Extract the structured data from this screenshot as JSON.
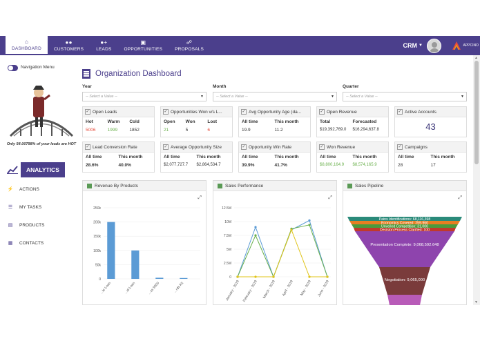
{
  "nav": {
    "items": [
      {
        "label": "DASHBOARD",
        "icon": "home-icon"
      },
      {
        "label": "CUSTOMERS",
        "icon": "users-icon"
      },
      {
        "label": "LEADS",
        "icon": "user-plus-icon"
      },
      {
        "label": "OPPORTUNITIES",
        "icon": "briefcase-icon"
      },
      {
        "label": "PROPOSALS",
        "icon": "handshake-icon"
      }
    ],
    "active": "DASHBOARD",
    "app_switch": "CRM",
    "brand": "APPCINO"
  },
  "sidebar": {
    "menu_label": "Navigation Menu",
    "hot_text": "Only 54.00798% of your leads are HOT",
    "analytics": "ANALYTICS",
    "items": [
      {
        "label": "ACTIONS",
        "icon": "bolt-icon"
      },
      {
        "label": "MY TASKS",
        "icon": "list-icon"
      },
      {
        "label": "PRODUCTS",
        "icon": "cart-icon"
      },
      {
        "label": "CONTACTS",
        "icon": "id-card-icon"
      }
    ]
  },
  "page": {
    "title": "Organization Dashboard",
    "filters": [
      {
        "label": "Year",
        "placeholder": "-- Select a Value --"
      },
      {
        "label": "Month",
        "placeholder": "-- Select a Value --"
      },
      {
        "label": "Quarter",
        "placeholder": "-- Select a Value --"
      }
    ]
  },
  "cards": {
    "open_leads": {
      "title": "Open Leads",
      "cols": [
        {
          "label": "Hot",
          "value": "5006"
        },
        {
          "label": "Warm",
          "value": "1999"
        },
        {
          "label": "Cold",
          "value": "1852"
        }
      ]
    },
    "opp_won": {
      "title": "Opportunities Won v/s L...",
      "cols": [
        {
          "label": "Open",
          "value": "21"
        },
        {
          "label": "Won",
          "value": "5"
        },
        {
          "label": "Lost",
          "value": "6"
        }
      ]
    },
    "avg_age": {
      "title": "Avg Opportunity Age (da...",
      "cols": [
        {
          "label": "All time",
          "value": "19.9"
        },
        {
          "label": "This month",
          "value": "11.2"
        }
      ]
    },
    "open_revenue": {
      "title": "Open Revenue",
      "cols": [
        {
          "label": "Total",
          "value": "$19,392,769.0"
        },
        {
          "label": "Forecasted",
          "value": "$16,294,637.8"
        }
      ]
    },
    "active_accounts": {
      "title": "Active Accounts",
      "value": "43"
    },
    "lead_conv": {
      "title": "Lead Conversion Rate",
      "cols": [
        {
          "label": "All time",
          "value": "28.6%"
        },
        {
          "label": "This month",
          "value": "40.0%"
        }
      ]
    },
    "avg_size": {
      "title": "Average Opportunity Size",
      "cols": [
        {
          "label": "All time",
          "value": "$2,077,727.7"
        },
        {
          "label": "This month",
          "value": "$2,864,534.7"
        }
      ]
    },
    "win_rate": {
      "title": "Opportunity Win Rate",
      "cols": [
        {
          "label": "All time",
          "value": "39.9%"
        },
        {
          "label": "This month",
          "value": "41.7%"
        }
      ]
    },
    "won_revenue": {
      "title": "Won Revenue",
      "cols": [
        {
          "label": "All time",
          "value": "$8,800,164.9"
        },
        {
          "label": "This month",
          "value": "$8,574,165.9"
        }
      ]
    },
    "campaigns": {
      "title": "Campaigns",
      "cols": [
        {
          "label": "All time",
          "value": "28"
        },
        {
          "label": "This month",
          "value": "17"
        }
      ]
    }
  },
  "panels": {
    "revenue": "Revenue By Products",
    "sales": "Sales Performance",
    "pipeline": "Sales Pipeline"
  },
  "colors": {
    "accent": "#4b3f8c",
    "red": "#e74c3c",
    "green": "#6ab04c"
  },
  "chart_data": [
    {
      "type": "bar",
      "title": "Revenue By Products",
      "ylim": [
        0,
        250000
      ],
      "yticks": [
        "250k",
        "200k",
        "150k",
        "100k",
        "50k",
        "0"
      ],
      "categories": [
        "...le Loan",
        "...al Loan",
        "...ss 9300",
        "...rds Kit"
      ],
      "values": [
        200000,
        100000,
        4000,
        3000
      ]
    },
    {
      "type": "line",
      "title": "Sales Performance",
      "ylim": [
        0,
        12500000
      ],
      "yticks": [
        "12.5M",
        "10M",
        "7.5M",
        "5M",
        "2.5M",
        "0"
      ],
      "categories": [
        "January - 2019",
        "February - 2019",
        "March - 2019",
        "April - 2019",
        "May - 2019",
        "June - 2019"
      ],
      "series": [
        {
          "values": [
            0,
            9000000,
            0,
            8500000,
            10200000,
            0
          ],
          "color": "#5b9bd5"
        },
        {
          "values": [
            0,
            7500000,
            0,
            8700000,
            9400000,
            0
          ],
          "color": "#6ab04c"
        },
        {
          "values": [
            0,
            0,
            0,
            8500000,
            0,
            0
          ],
          "color": "#e0c419"
        }
      ]
    },
    {
      "type": "funnel",
      "title": "Sales Pipeline",
      "stages": [
        {
          "label": "Pains Identifications: 68,116,398",
          "color": "#2a8a7a"
        },
        {
          "label": "Economics Covered: 259,960",
          "color": "#e67e22"
        },
        {
          "label": "Unveiled Competition: 31,000",
          "color": "#4a9a3c"
        },
        {
          "label": "Decision Process Clarified: 100",
          "color": "#c0392b"
        },
        {
          "label": "Presentation Complete: 9,068,592.648",
          "color": "#8e44ad"
        },
        {
          "label": "Negotiation: 9,065,000",
          "color": "#7a3b3b"
        },
        {
          "label": "",
          "color": "#b85bb8"
        }
      ]
    }
  ]
}
